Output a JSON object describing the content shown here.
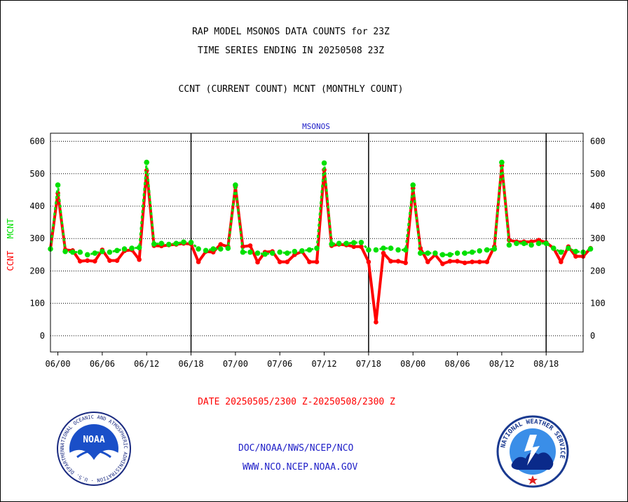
{
  "titles": {
    "line1": "RAP MODEL MSONOS DATA COUNTS for 23Z",
    "line2": "TIME SERIES ENDING IN 20250508 23Z",
    "line3": "CCNT (CURRENT COUNT) MCNT (MONTHLY COUNT)"
  },
  "footer": {
    "date_range": "DATE 20250505/2300 Z-20250508/2300 Z",
    "link1": "DOC/NOAA/NWS/NCEP/NCO",
    "link2": "WWW.NCO.NCEP.NOAA.GOV"
  },
  "logos": {
    "noaa": {
      "text": "NOAA",
      "ring_text": "NATIONAL OCEANIC AND ATMOSPHERIC ADMINISTRATION · U.S. DEPARTMENT OF COMMERCE"
    },
    "nws": {
      "ring_text": "NATIONAL WEATHER SERVICE"
    }
  },
  "colors": {
    "ccnt": "#ff0000",
    "mcnt": "#00e000",
    "link": "#2020c8",
    "series_title": "#2020c8"
  },
  "chart_data": {
    "type": "line",
    "title": "MSONOS",
    "ylabel_parts": [
      {
        "text": "CCNT",
        "color": "#ff0000"
      },
      {
        "text": "MCNT",
        "color": "#00e000"
      }
    ],
    "xlim": [
      -1,
      71
    ],
    "ylim": [
      -50,
      625
    ],
    "yticks": [
      0,
      100,
      200,
      300,
      400,
      500,
      600
    ],
    "xticks": [
      {
        "x": 0,
        "label": "06/00"
      },
      {
        "x": 6,
        "label": "06/06"
      },
      {
        "x": 12,
        "label": "06/12"
      },
      {
        "x": 18,
        "label": "06/18"
      },
      {
        "x": 24,
        "label": "07/00"
      },
      {
        "x": 30,
        "label": "07/06"
      },
      {
        "x": 36,
        "label": "07/12"
      },
      {
        "x": 42,
        "label": "07/18"
      },
      {
        "x": 48,
        "label": "08/00"
      },
      {
        "x": 54,
        "label": "08/06"
      },
      {
        "x": 60,
        "label": "08/12"
      },
      {
        "x": 66,
        "label": "08/18"
      }
    ],
    "day_separators": [
      18,
      42,
      66
    ],
    "grid": true,
    "series": [
      {
        "name": "CCNT",
        "color": "#ff0000",
        "values": [
          268,
          440,
          265,
          263,
          230,
          232,
          230,
          265,
          232,
          232,
          262,
          265,
          235,
          510,
          278,
          277,
          280,
          282,
          285,
          283,
          228,
          260,
          258,
          282,
          275,
          460,
          275,
          278,
          227,
          258,
          260,
          228,
          228,
          250,
          260,
          228,
          228,
          512,
          278,
          282,
          280,
          275,
          275,
          228,
          42,
          255,
          230,
          230,
          225,
          455,
          270,
          228,
          250,
          222,
          230,
          230,
          225,
          228,
          228,
          228,
          275,
          525,
          295,
          290,
          290,
          290,
          295,
          288,
          270,
          228,
          275,
          245,
          245,
          270
        ]
      },
      {
        "name": "MCNT",
        "color": "#00e000",
        "values": [
          268,
          465,
          260,
          258,
          258,
          250,
          255,
          260,
          258,
          263,
          268,
          270,
          272,
          535,
          283,
          285,
          282,
          285,
          289,
          288,
          268,
          263,
          268,
          268,
          270,
          465,
          258,
          258,
          255,
          252,
          255,
          258,
          255,
          260,
          262,
          265,
          270,
          533,
          283,
          285,
          285,
          287,
          288,
          265,
          265,
          270,
          270,
          265,
          265,
          465,
          255,
          255,
          255,
          250,
          250,
          255,
          255,
          258,
          262,
          265,
          268,
          535,
          280,
          285,
          285,
          280,
          285,
          285,
          270,
          258,
          270,
          260,
          258,
          268
        ]
      }
    ]
  }
}
